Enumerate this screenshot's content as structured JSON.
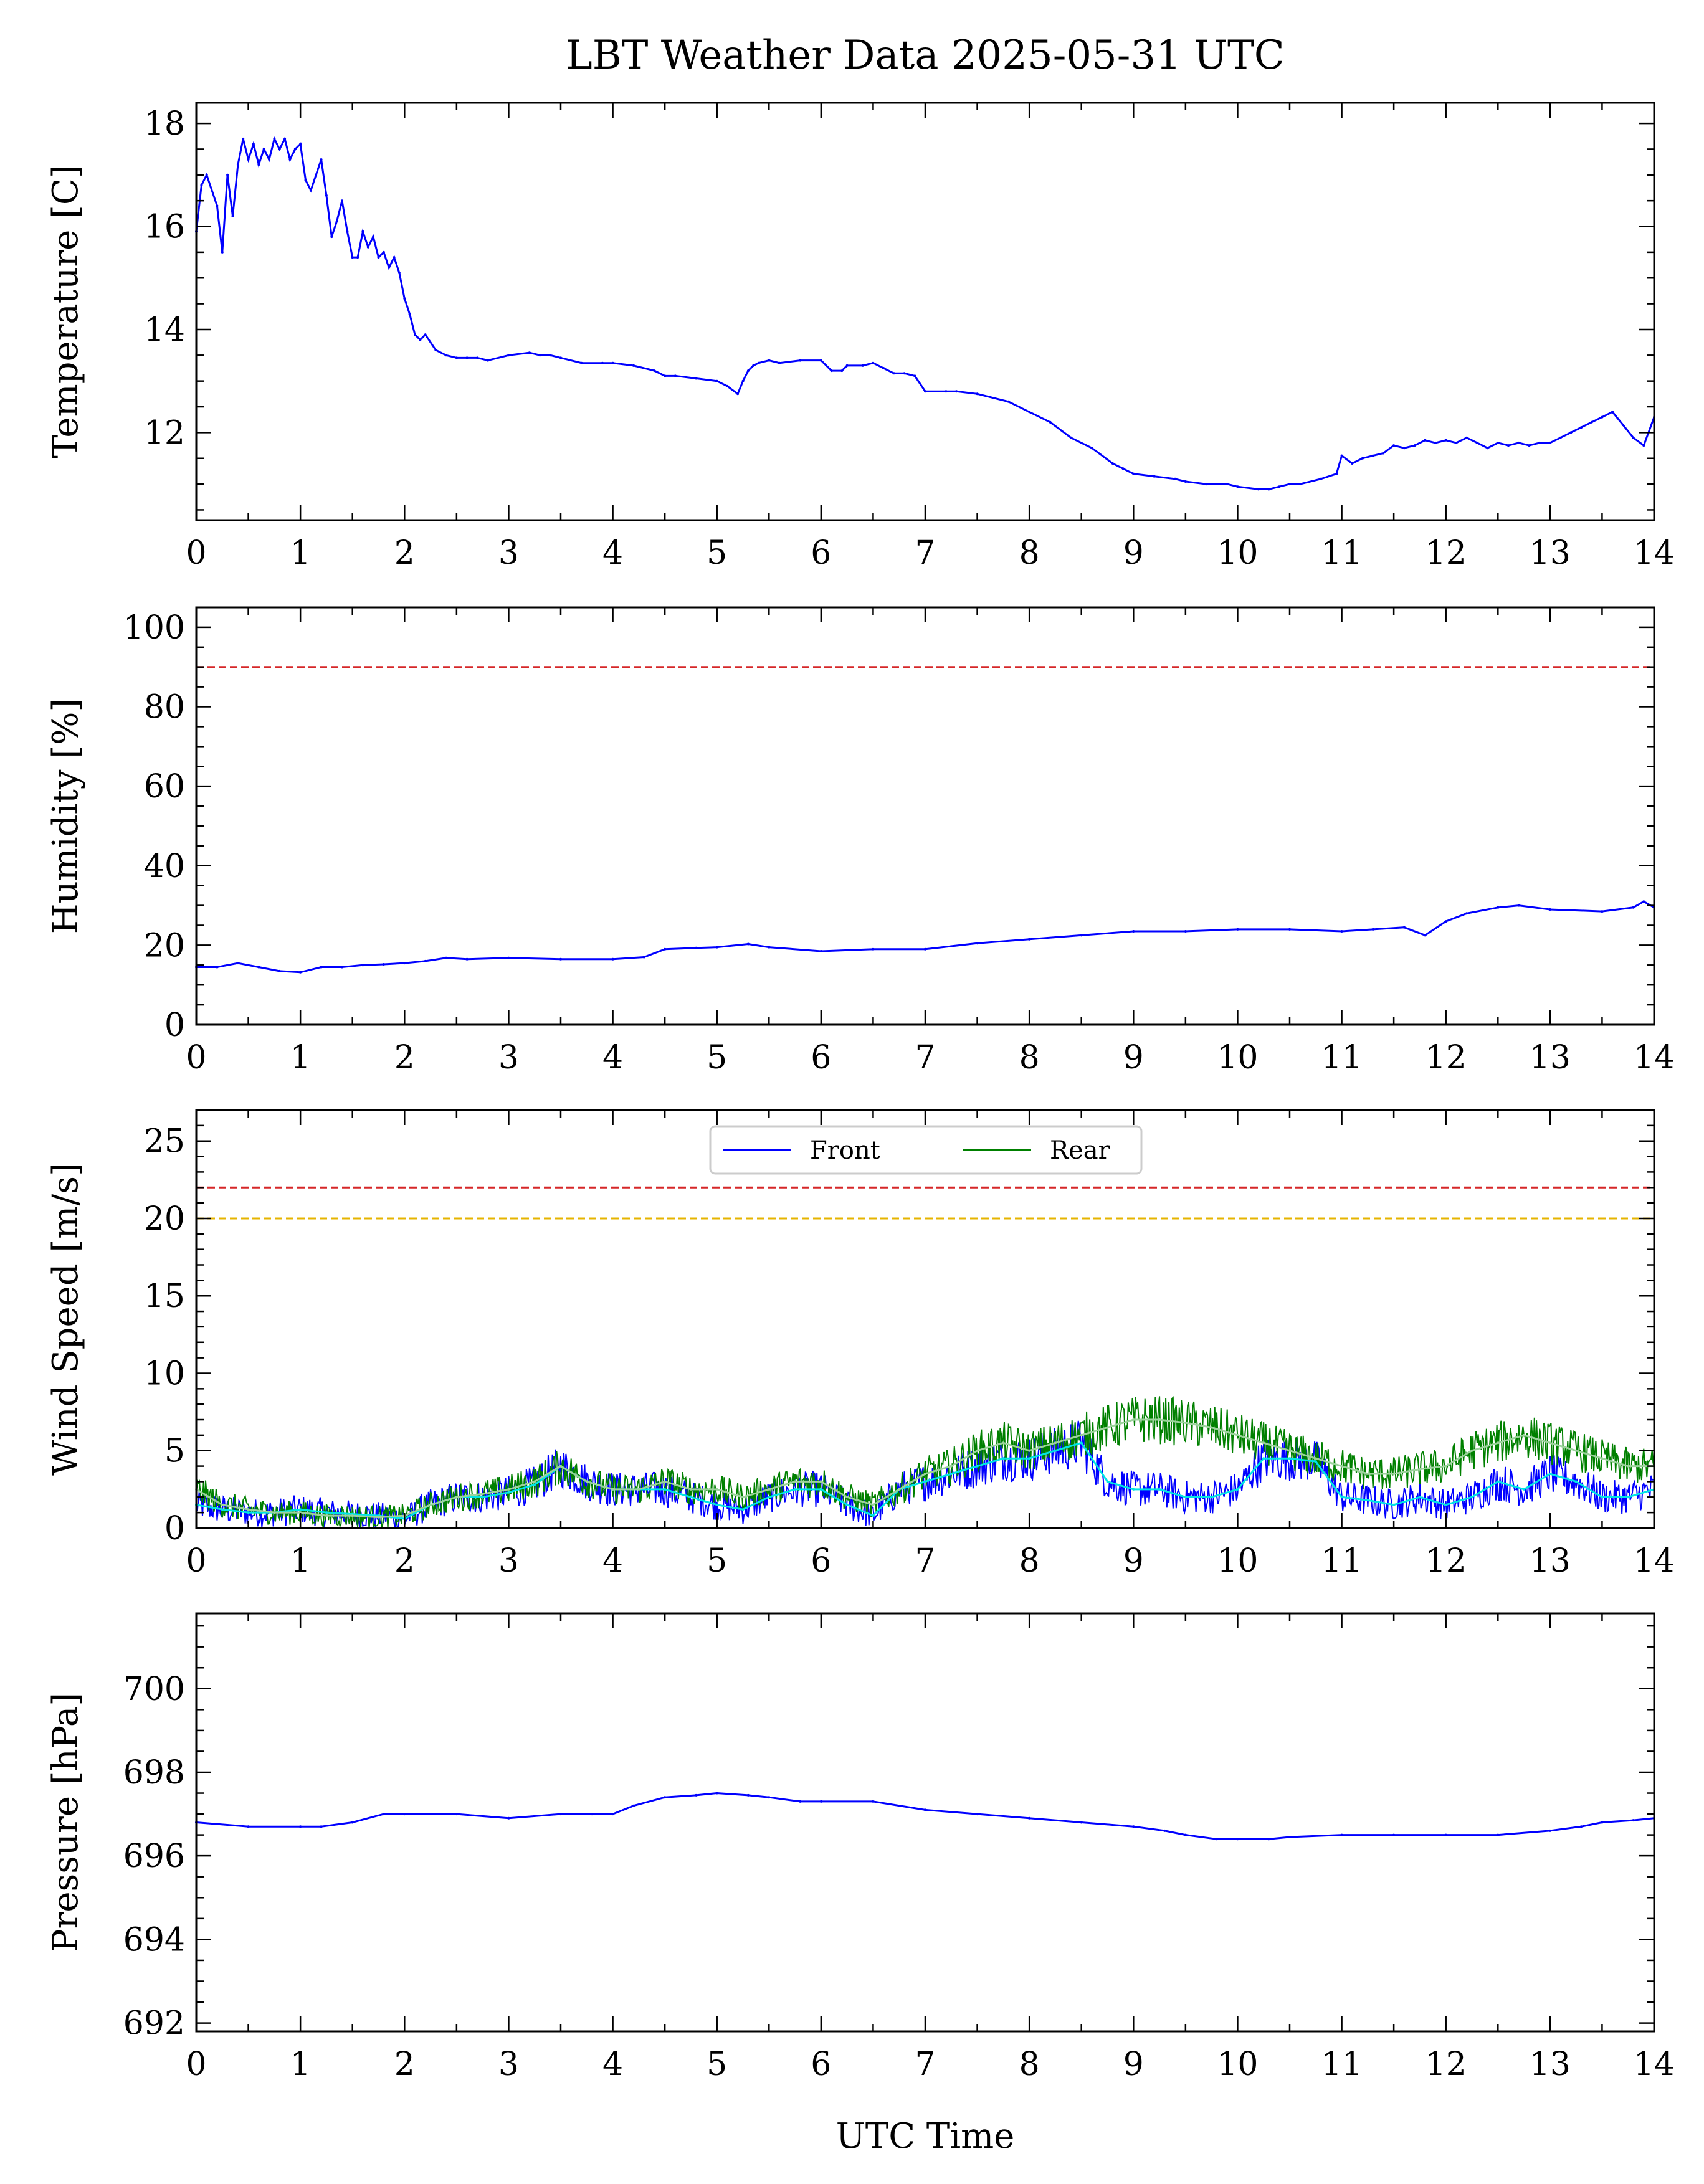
{
  "colors": {
    "front": "#0000ff",
    "rear": "#008000",
    "front_mean": "#00e5e5",
    "rear_mean": "#9bd29b",
    "limit_red": "#d62728",
    "limit_yellow": "#e6b400"
  },
  "chart_data": {
    "title": "LBT Weather Data 2025-05-31 UTC",
    "xlabel": "UTC Time",
    "xlim": [
      0,
      14
    ],
    "xticks": [
      "0",
      "1",
      "2",
      "3",
      "4",
      "5",
      "6",
      "7",
      "8",
      "9",
      "10",
      "11",
      "12",
      "13",
      "14"
    ],
    "panels": [
      {
        "type": "line",
        "ylabel": "Temperature [C]",
        "ylim": [
          10.3,
          18.4
        ],
        "yticks": [
          12,
          14,
          16,
          18
        ],
        "series": [
          {
            "color": "#0000ff",
            "x": [
              0,
              0.05,
              0.1,
              0.2,
              0.25,
              0.3,
              0.35,
              0.4,
              0.45,
              0.5,
              0.55,
              0.6,
              0.65,
              0.7,
              0.75,
              0.8,
              0.85,
              0.9,
              0.95,
              1.0,
              1.05,
              1.1,
              1.15,
              1.2,
              1.25,
              1.3,
              1.35,
              1.4,
              1.45,
              1.5,
              1.55,
              1.6,
              1.65,
              1.7,
              1.75,
              1.8,
              1.85,
              1.9,
              1.95,
              2.0,
              2.05,
              2.1,
              2.15,
              2.2,
              2.3,
              2.4,
              2.5,
              2.6,
              2.7,
              2.8,
              3.0,
              3.2,
              3.3,
              3.4,
              3.5,
              3.7,
              3.9,
              4.0,
              4.2,
              4.4,
              4.5,
              4.6,
              4.8,
              5.0,
              5.1,
              5.2,
              5.25,
              5.3,
              5.35,
              5.4,
              5.5,
              5.6,
              5.8,
              6.0,
              6.1,
              6.2,
              6.25,
              6.4,
              6.5,
              6.6,
              6.7,
              6.8,
              6.9,
              7.0,
              7.2,
              7.3,
              7.5,
              7.8,
              8.0,
              8.2,
              8.4,
              8.6,
              8.8,
              8.9,
              9.0,
              9.2,
              9.4,
              9.5,
              9.7,
              9.9,
              10.0,
              10.2,
              10.3,
              10.4,
              10.5,
              10.6,
              10.8,
              10.95,
              11.0,
              11.1,
              11.2,
              11.3,
              11.4,
              11.5,
              11.6,
              11.7,
              11.8,
              11.9,
              12.0,
              12.1,
              12.2,
              12.3,
              12.4,
              12.5,
              12.6,
              12.7,
              12.8,
              12.9,
              13.0,
              13.1,
              13.2,
              13.3,
              13.4,
              13.5,
              13.6,
              13.7,
              13.8,
              13.9,
              14.0
            ],
            "values": [
              15.9,
              16.8,
              17.0,
              16.4,
              15.5,
              17.0,
              16.2,
              17.2,
              17.7,
              17.3,
              17.6,
              17.2,
              17.5,
              17.3,
              17.7,
              17.5,
              17.7,
              17.3,
              17.5,
              17.6,
              16.9,
              16.7,
              17.0,
              17.3,
              16.6,
              15.8,
              16.1,
              16.5,
              15.9,
              15.4,
              15.4,
              15.9,
              15.6,
              15.8,
              15.4,
              15.5,
              15.2,
              15.4,
              15.1,
              14.6,
              14.3,
              13.9,
              13.8,
              13.9,
              13.6,
              13.5,
              13.45,
              13.45,
              13.45,
              13.4,
              13.5,
              13.55,
              13.5,
              13.5,
              13.45,
              13.35,
              13.35,
              13.35,
              13.3,
              13.2,
              13.1,
              13.1,
              13.05,
              13.0,
              12.9,
              12.75,
              13.0,
              13.2,
              13.3,
              13.35,
              13.4,
              13.35,
              13.4,
              13.4,
              13.2,
              13.2,
              13.3,
              13.3,
              13.35,
              13.25,
              13.15,
              13.15,
              13.1,
              12.8,
              12.8,
              12.8,
              12.75,
              12.6,
              12.4,
              12.2,
              11.9,
              11.7,
              11.4,
              11.3,
              11.2,
              11.15,
              11.1,
              11.05,
              11.0,
              11.0,
              10.95,
              10.9,
              10.9,
              10.95,
              11.0,
              11.0,
              11.1,
              11.2,
              11.55,
              11.4,
              11.5,
              11.55,
              11.6,
              11.75,
              11.7,
              11.75,
              11.85,
              11.8,
              11.85,
              11.8,
              11.9,
              11.8,
              11.7,
              11.8,
              11.75,
              11.8,
              11.75,
              11.8,
              11.8,
              11.9,
              12.0,
              12.1,
              12.2,
              12.3,
              12.4,
              12.15,
              11.9,
              11.75,
              12.3
            ]
          }
        ]
      },
      {
        "type": "line",
        "ylabel": "Humidity [%]",
        "ylim": [
          0,
          105
        ],
        "yticks": [
          0,
          20,
          40,
          60,
          80,
          100
        ],
        "limit_lines": [
          {
            "y": 90,
            "color": "#d62728"
          }
        ],
        "series": [
          {
            "color": "#0000ff",
            "x": [
              0,
              0.2,
              0.4,
              0.6,
              0.8,
              1.0,
              1.2,
              1.4,
              1.6,
              1.8,
              2.0,
              2.2,
              2.4,
              2.6,
              3.0,
              3.5,
              4.0,
              4.3,
              4.5,
              4.8,
              5.0,
              5.3,
              5.5,
              6.0,
              6.5,
              7.0,
              7.5,
              8.0,
              8.5,
              9.0,
              9.5,
              10.0,
              10.5,
              11.0,
              11.3,
              11.6,
              11.8,
              12.0,
              12.2,
              12.5,
              12.7,
              13.0,
              13.5,
              13.8,
              13.9,
              14.0
            ],
            "values": [
              14.5,
              14.5,
              15.5,
              14.5,
              13.5,
              13.2,
              14.5,
              14.5,
              15.0,
              15.2,
              15.5,
              16.0,
              16.8,
              16.5,
              16.8,
              16.5,
              16.5,
              17.0,
              19.0,
              19.3,
              19.5,
              20.3,
              19.5,
              18.5,
              19.0,
              19.0,
              20.5,
              21.5,
              22.5,
              23.5,
              23.5,
              24.0,
              24.0,
              23.5,
              24.0,
              24.5,
              22.5,
              26.0,
              28.0,
              29.5,
              30.0,
              29.0,
              28.5,
              29.5,
              31.0,
              29.5
            ]
          }
        ]
      },
      {
        "type": "line",
        "ylabel": "Wind Speed [m/s]",
        "ylim": [
          0,
          27
        ],
        "yticks": [
          0,
          5,
          10,
          15,
          20,
          25
        ],
        "legend": {
          "position": "top-center",
          "entries": [
            "Front",
            "Rear"
          ]
        },
        "limit_lines": [
          {
            "y": 22,
            "color": "#d62728"
          },
          {
            "y": 20,
            "color": "#e6b400"
          }
        ],
        "series": [
          {
            "name": "Front",
            "color": "#0000ff",
            "x": [
              0,
              0.25,
              0.5,
              0.75,
              1.0,
              1.25,
              1.5,
              1.75,
              2.0,
              2.25,
              2.5,
              2.75,
              3.0,
              3.25,
              3.5,
              3.75,
              4.0,
              4.25,
              4.5,
              4.75,
              5.0,
              5.25,
              5.5,
              5.75,
              6.0,
              6.25,
              6.5,
              6.75,
              7.0,
              7.25,
              7.5,
              7.75,
              8.0,
              8.25,
              8.5,
              8.75,
              9.0,
              9.25,
              9.5,
              9.75,
              10.0,
              10.25,
              10.5,
              10.75,
              11.0,
              11.25,
              11.5,
              11.75,
              12.0,
              12.25,
              12.5,
              12.75,
              13.0,
              13.25,
              13.5,
              13.75,
              14.0
            ],
            "values": [
              1.5,
              1.2,
              1.0,
              1.0,
              1.2,
              1.0,
              0.9,
              0.8,
              0.6,
              1.5,
              2.0,
              2.0,
              2.3,
              2.8,
              4.0,
              3.0,
              2.5,
              2.5,
              2.5,
              2.0,
              1.5,
              1.2,
              2.0,
              2.5,
              2.5,
              1.5,
              0.8,
              2.5,
              3.0,
              3.5,
              4.0,
              4.5,
              4.5,
              5.0,
              5.5,
              3.0,
              2.5,
              2.5,
              2.0,
              2.0,
              2.5,
              4.5,
              4.5,
              4.3,
              2.0,
              1.8,
              1.5,
              2.0,
              1.5,
              2.0,
              3.0,
              2.5,
              3.5,
              3.0,
              2.0,
              2.0,
              2.5
            ]
          },
          {
            "name": "Rear",
            "color": "#008000",
            "x": [
              0,
              0.25,
              0.5,
              0.75,
              1.0,
              1.25,
              1.5,
              1.75,
              2.0,
              2.25,
              2.5,
              2.75,
              3.0,
              3.25,
              3.5,
              3.75,
              4.0,
              4.25,
              4.5,
              4.75,
              5.0,
              5.25,
              5.5,
              5.75,
              6.0,
              6.25,
              6.5,
              6.75,
              7.0,
              7.25,
              7.5,
              7.75,
              8.0,
              8.25,
              8.5,
              8.75,
              9.0,
              9.25,
              9.5,
              9.75,
              10.0,
              10.25,
              10.5,
              10.75,
              11.0,
              11.25,
              11.5,
              11.75,
              12.0,
              12.25,
              12.5,
              12.75,
              13.0,
              13.25,
              13.5,
              13.75,
              14.0
            ],
            "values": [
              2.5,
              1.5,
              1.2,
              1.0,
              1.0,
              0.8,
              0.8,
              0.7,
              0.8,
              1.5,
              2.0,
              2.2,
              2.5,
              3.0,
              4.0,
              3.0,
              2.5,
              2.5,
              3.0,
              2.5,
              2.5,
              2.0,
              2.5,
              3.0,
              3.0,
              2.0,
              1.5,
              2.5,
              3.5,
              4.0,
              5.0,
              5.5,
              5.0,
              5.5,
              6.0,
              6.5,
              7.0,
              7.0,
              6.8,
              6.5,
              6.0,
              5.5,
              5.0,
              4.5,
              4.0,
              3.5,
              3.5,
              3.8,
              4.0,
              5.0,
              5.5,
              6.0,
              5.5,
              5.0,
              4.5,
              4.0,
              4.0
            ]
          }
        ]
      },
      {
        "type": "line",
        "ylabel": "Pressure [hPa]",
        "ylim": [
          691.8,
          701.8
        ],
        "yticks": [
          692,
          694,
          696,
          698,
          700
        ],
        "series": [
          {
            "color": "#0000ff",
            "x": [
              0,
              0.5,
              1.0,
              1.2,
              1.5,
              1.8,
              2.0,
              2.5,
              3.0,
              3.5,
              3.8,
              4.0,
              4.2,
              4.5,
              4.8,
              5.0,
              5.3,
              5.5,
              5.8,
              6.0,
              6.5,
              7.0,
              7.5,
              8.0,
              8.5,
              9.0,
              9.3,
              9.5,
              9.8,
              10.0,
              10.3,
              10.5,
              11.0,
              11.5,
              12.0,
              12.5,
              13.0,
              13.3,
              13.5,
              13.8,
              14.0
            ],
            "values": [
              696.8,
              696.7,
              696.7,
              696.7,
              696.8,
              697.0,
              697.0,
              697.0,
              696.9,
              697.0,
              697.0,
              697.0,
              697.2,
              697.4,
              697.45,
              697.5,
              697.45,
              697.4,
              697.3,
              697.3,
              697.3,
              697.1,
              697.0,
              696.9,
              696.8,
              696.7,
              696.6,
              696.5,
              696.4,
              696.4,
              696.4,
              696.45,
              696.5,
              696.5,
              696.5,
              696.5,
              696.6,
              696.7,
              696.8,
              696.85,
              696.9
            ]
          }
        ]
      }
    ]
  }
}
